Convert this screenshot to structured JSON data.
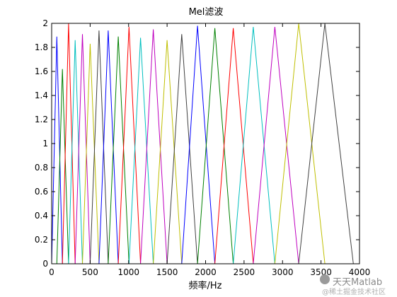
{
  "chart_data": {
    "type": "line",
    "title": "Mel滤波",
    "xlabel": "频率/Hz",
    "ylabel": "",
    "xlim": [
      0,
      4000
    ],
    "ylim": [
      0,
      2
    ],
    "xticks": [
      0,
      500,
      1000,
      1500,
      2000,
      2500,
      3000,
      3500,
      4000
    ],
    "yticks": [
      0,
      0.2,
      0.4,
      0.6,
      0.8,
      1,
      1.2,
      1.4,
      1.6,
      1.8,
      2
    ],
    "ytick_labels": [
      "0",
      "0.2",
      "0.4",
      "0.6",
      "0.8",
      "1",
      "1.2",
      "1.4",
      "1.6",
      "1.8",
      "2"
    ],
    "grid": false,
    "series_colors": [
      "#0000ff",
      "#008000",
      "#ff0000",
      "#00bfbf",
      "#bf00bf",
      "#bfbf00",
      "#404040"
    ],
    "filters": [
      {
        "left": 0,
        "center": 67,
        "right": 140,
        "peak": 1.89
      },
      {
        "left": 67,
        "center": 140,
        "right": 220,
        "peak": 1.62
      },
      {
        "left": 140,
        "center": 220,
        "right": 305,
        "peak": 2.0
      },
      {
        "left": 220,
        "center": 305,
        "right": 400,
        "peak": 1.86
      },
      {
        "left": 305,
        "center": 400,
        "right": 500,
        "peak": 1.91
      },
      {
        "left": 400,
        "center": 500,
        "right": 615,
        "peak": 1.83
      },
      {
        "left": 500,
        "center": 615,
        "right": 735,
        "peak": 1.94
      },
      {
        "left": 615,
        "center": 735,
        "right": 865,
        "peak": 1.94
      },
      {
        "left": 735,
        "center": 865,
        "right": 1005,
        "peak": 1.89
      },
      {
        "left": 865,
        "center": 1005,
        "right": 1155,
        "peak": 1.97
      },
      {
        "left": 1005,
        "center": 1155,
        "right": 1320,
        "peak": 1.88
      },
      {
        "left": 1155,
        "center": 1320,
        "right": 1500,
        "peak": 1.95
      },
      {
        "left": 1320,
        "center": 1500,
        "right": 1690,
        "peak": 1.86
      },
      {
        "left": 1500,
        "center": 1690,
        "right": 1895,
        "peak": 1.91
      },
      {
        "left": 1690,
        "center": 1895,
        "right": 2120,
        "peak": 1.98
      },
      {
        "left": 1895,
        "center": 2120,
        "right": 2360,
        "peak": 1.96
      },
      {
        "left": 2120,
        "center": 2360,
        "right": 2620,
        "peak": 1.96
      },
      {
        "left": 2360,
        "center": 2620,
        "right": 2900,
        "peak": 1.97
      },
      {
        "left": 2620,
        "center": 2900,
        "right": 3210,
        "peak": 1.97
      },
      {
        "left": 2900,
        "center": 3210,
        "right": 3550,
        "peak": 2.0
      },
      {
        "left": 3210,
        "center": 3550,
        "right": 3920,
        "peak": 2.0
      }
    ]
  },
  "watermark": {
    "line1": "天天Matlab",
    "line2": "@稀土掘金技术社区"
  }
}
